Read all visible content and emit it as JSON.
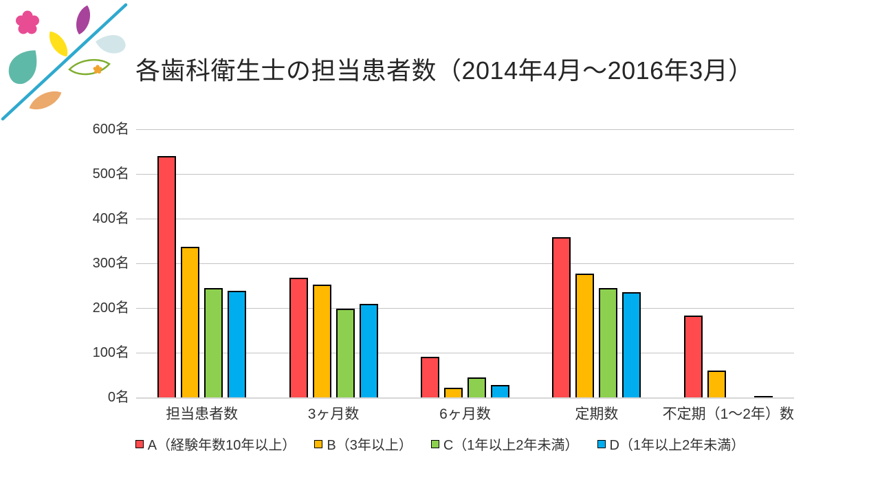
{
  "title": "各歯科衛生士の担当患者数（2014年4月～2016年3月）",
  "decoration": {
    "icons": [
      {
        "name": "branch-line-icon",
        "color": "#2FA9CE"
      },
      {
        "name": "flower-icon",
        "color": "#E84C93"
      },
      {
        "name": "purple-leaf-icon",
        "color": "#A8439B"
      },
      {
        "name": "yellow-leaf-icon",
        "color": "#FFE01A"
      },
      {
        "name": "teal-drop-leaf-icon",
        "color": "#5FB9A8"
      },
      {
        "name": "lightblue-drop-leaf-icon",
        "color": "#D2E6E9"
      },
      {
        "name": "outlined-leaf-icon",
        "color": "#7FAE2E"
      },
      {
        "name": "small-orange-flower-icon",
        "color": "#F0A32F"
      },
      {
        "name": "orange-leaf-icon",
        "color": "#EBA96B"
      }
    ]
  },
  "chart_data": {
    "type": "bar",
    "title": "各歯科衛生士の担当患者数（2014年4月～2016年3月）",
    "categories": [
      "担当患者数",
      "3ヶ月数",
      "6ヶ月数",
      "定期数",
      "不定期（1～2年）数"
    ],
    "series": [
      {
        "name": "A（経験年数10年以上）",
        "color": "#FF4B4D",
        "values": [
          540,
          267,
          91,
          359,
          183
        ]
      },
      {
        "name": "B（3年以上）",
        "color": "#FFB900",
        "values": [
          337,
          252,
          22,
          277,
          60
        ]
      },
      {
        "name": "C（1年以上2年未満）",
        "color": "#8DD04F",
        "values": [
          245,
          198,
          45,
          244,
          0
        ]
      },
      {
        "name": "D（1年以上2年未満）",
        "color": "#00AEEF",
        "values": [
          238,
          209,
          28,
          236,
          3
        ]
      }
    ],
    "ylim": [
      0,
      600
    ],
    "ytick_step": 100,
    "yticks": [
      "600名",
      "500名",
      "400名",
      "300名",
      "200名",
      "100名",
      "0名"
    ],
    "xlabel": "",
    "ylabel": "",
    "grid": true,
    "gridline_color": "#c3c3c3",
    "bar_outline_color": "#000000",
    "legend_position": "bottom"
  }
}
